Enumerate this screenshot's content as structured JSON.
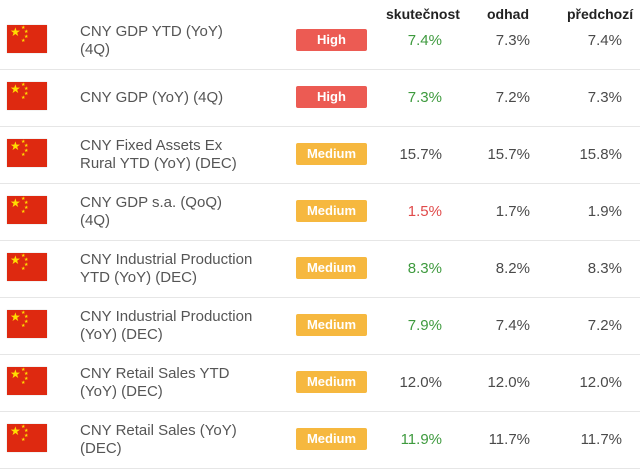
{
  "headers": {
    "actual": "skutečnost",
    "forecast": "odhad",
    "previous": "předchozí"
  },
  "colors": {
    "high": "#ec5b53",
    "medium": "#f6b83f",
    "better": "#3e9a3e",
    "worse": "#e04a4a",
    "flag_red": "#de2910",
    "flag_star": "#ffde00"
  },
  "rows": [
    {
      "flag": "china-flag-icon",
      "event_line1": "CNY GDP YTD (YoY)",
      "event_line2": "(4Q)",
      "impact": "High",
      "impact_level": "high",
      "actual": "7.4%",
      "actual_trend": "good",
      "forecast": "7.3%",
      "previous": "7.4%"
    },
    {
      "flag": "china-flag-icon",
      "event_line1": "CNY GDP (YoY) (4Q)",
      "event_line2": "",
      "impact": "High",
      "impact_level": "high",
      "actual": "7.3%",
      "actual_trend": "good",
      "forecast": "7.2%",
      "previous": "7.3%"
    },
    {
      "flag": "china-flag-icon",
      "event_line1": "CNY Fixed Assets Ex",
      "event_line2": "Rural YTD (YoY) (DEC)",
      "impact": "Medium",
      "impact_level": "medium",
      "actual": "15.7%",
      "actual_trend": "neutral",
      "forecast": "15.7%",
      "previous": "15.8%"
    },
    {
      "flag": "china-flag-icon",
      "event_line1": "CNY GDP s.a. (QoQ)",
      "event_line2": "(4Q)",
      "impact": "Medium",
      "impact_level": "medium",
      "actual": "1.5%",
      "actual_trend": "bad",
      "forecast": "1.7%",
      "previous": "1.9%"
    },
    {
      "flag": "china-flag-icon",
      "event_line1": "CNY Industrial Production",
      "event_line2": "YTD (YoY) (DEC)",
      "impact": "Medium",
      "impact_level": "medium",
      "actual": "8.3%",
      "actual_trend": "good",
      "forecast": "8.2%",
      "previous": "8.3%"
    },
    {
      "flag": "china-flag-icon",
      "event_line1": "CNY Industrial Production",
      "event_line2": "(YoY) (DEC)",
      "impact": "Medium",
      "impact_level": "medium",
      "actual": "7.9%",
      "actual_trend": "good",
      "forecast": "7.4%",
      "previous": "7.2%"
    },
    {
      "flag": "china-flag-icon",
      "event_line1": "CNY Retail Sales YTD",
      "event_line2": "(YoY) (DEC)",
      "impact": "Medium",
      "impact_level": "medium",
      "actual": "12.0%",
      "actual_trend": "neutral",
      "forecast": "12.0%",
      "previous": "12.0%"
    },
    {
      "flag": "china-flag-icon",
      "event_line1": "CNY Retail Sales (YoY)",
      "event_line2": "(DEC)",
      "impact": "Medium",
      "impact_level": "medium",
      "actual": "11.9%",
      "actual_trend": "good",
      "forecast": "11.7%",
      "previous": "11.7%"
    }
  ]
}
